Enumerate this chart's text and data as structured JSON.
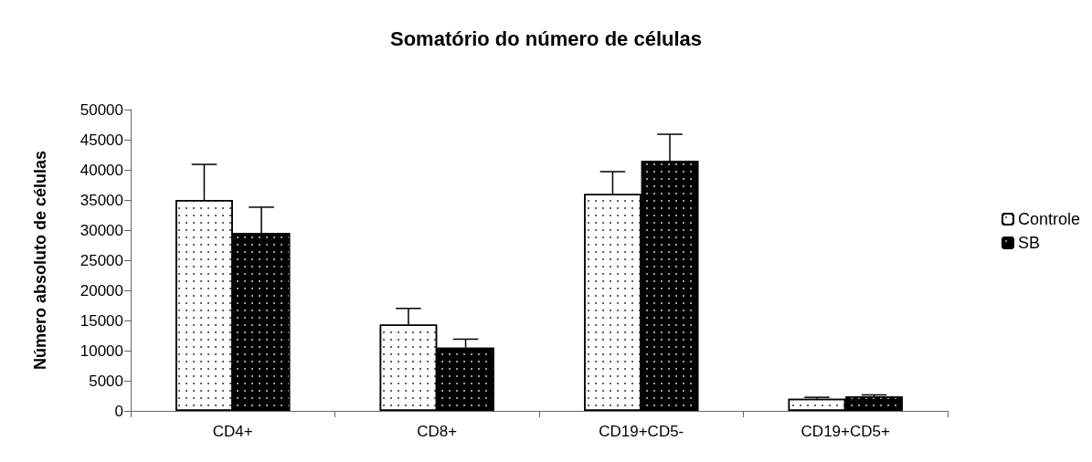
{
  "chart_data": {
    "type": "bar",
    "title": "Somatório do número de células",
    "ylabel": "Número absoluto de células",
    "categories": [
      "CD4+",
      "CD8+",
      "CD19+CD5-",
      "CD19+CD5+"
    ],
    "series": [
      {
        "name": "Controle",
        "color": "#ffffff",
        "values": [
          35000,
          14300,
          36000,
          2000
        ],
        "errors": [
          [
            35000,
            40900
          ],
          [
            14300,
            17000
          ],
          [
            36000,
            39700
          ],
          [
            2000,
            2250
          ]
        ]
      },
      {
        "name": "SB",
        "color": "#000000",
        "values": [
          29500,
          10500,
          41500,
          2400
        ],
        "errors": [
          [
            29500,
            33800
          ],
          [
            10500,
            11900
          ],
          [
            41500,
            45900
          ],
          [
            2400,
            2650
          ]
        ]
      }
    ],
    "ylim": [
      0,
      50000
    ],
    "yticks": [
      0,
      5000,
      10000,
      15000,
      20000,
      25000,
      30000,
      35000,
      40000,
      45000,
      50000
    ],
    "grid": false,
    "legend": "right"
  }
}
